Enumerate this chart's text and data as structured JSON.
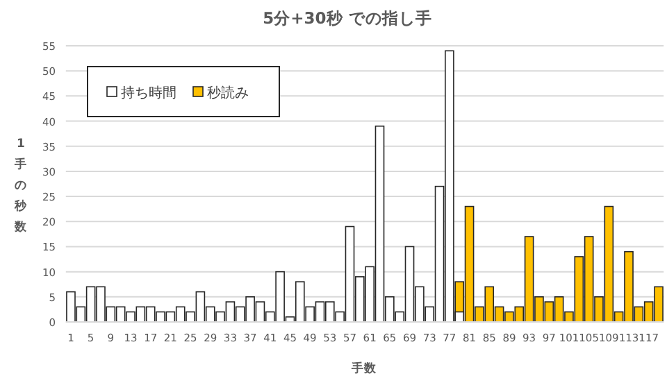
{
  "chart_data": {
    "type": "bar",
    "title": "5分+30秒 での指し手",
    "xlabel": "手数",
    "ylabel": "1手の秒数",
    "categories": [
      "1",
      null,
      "5",
      null,
      "9",
      null,
      "13",
      null,
      "17",
      null,
      "21",
      null,
      "25",
      null,
      "29",
      null,
      "33",
      null,
      "37",
      null,
      "41",
      null,
      "45",
      null,
      "49",
      null,
      "53",
      null,
      "57",
      null,
      "61",
      null,
      "65",
      null,
      "69",
      null,
      "73",
      null,
      "77",
      null,
      "81",
      null,
      "85",
      null,
      "89",
      null,
      "93",
      null,
      "97",
      null,
      "101",
      null,
      "105",
      null,
      "109",
      null,
      "113",
      null,
      "117",
      null
    ],
    "series": [
      {
        "name": "持ち時間",
        "color": "#ffffff",
        "values": [
          6,
          3,
          7,
          7,
          3,
          3,
          2,
          3,
          3,
          2,
          2,
          3,
          2,
          6,
          3,
          2,
          4,
          3,
          5,
          4,
          2,
          10,
          1,
          8,
          3,
          4,
          4,
          2,
          19,
          9,
          11,
          39,
          5,
          2,
          15,
          7,
          3,
          27,
          54,
          2,
          null,
          null,
          null,
          null,
          null,
          null,
          null,
          null,
          null,
          null,
          null,
          null,
          null,
          null,
          null,
          null,
          null,
          null,
          null,
          null
        ]
      },
      {
        "name": "秒読み",
        "color": "#ffc000",
        "values": [
          null,
          null,
          null,
          null,
          null,
          null,
          null,
          null,
          null,
          null,
          null,
          null,
          null,
          null,
          null,
          null,
          null,
          null,
          null,
          null,
          null,
          null,
          null,
          null,
          null,
          null,
          null,
          null,
          null,
          null,
          null,
          null,
          null,
          null,
          null,
          null,
          null,
          null,
          null,
          8,
          23,
          3,
          7,
          3,
          2,
          3,
          17,
          5,
          4,
          5,
          2,
          13,
          17,
          5,
          23,
          2,
          14,
          3,
          4,
          7
        ]
      }
    ],
    "ylim": [
      0,
      55
    ],
    "yticks": [
      0,
      5,
      10,
      15,
      20,
      25,
      30,
      35,
      40,
      45,
      50,
      55
    ],
    "grid": "y",
    "legend": "top left"
  }
}
